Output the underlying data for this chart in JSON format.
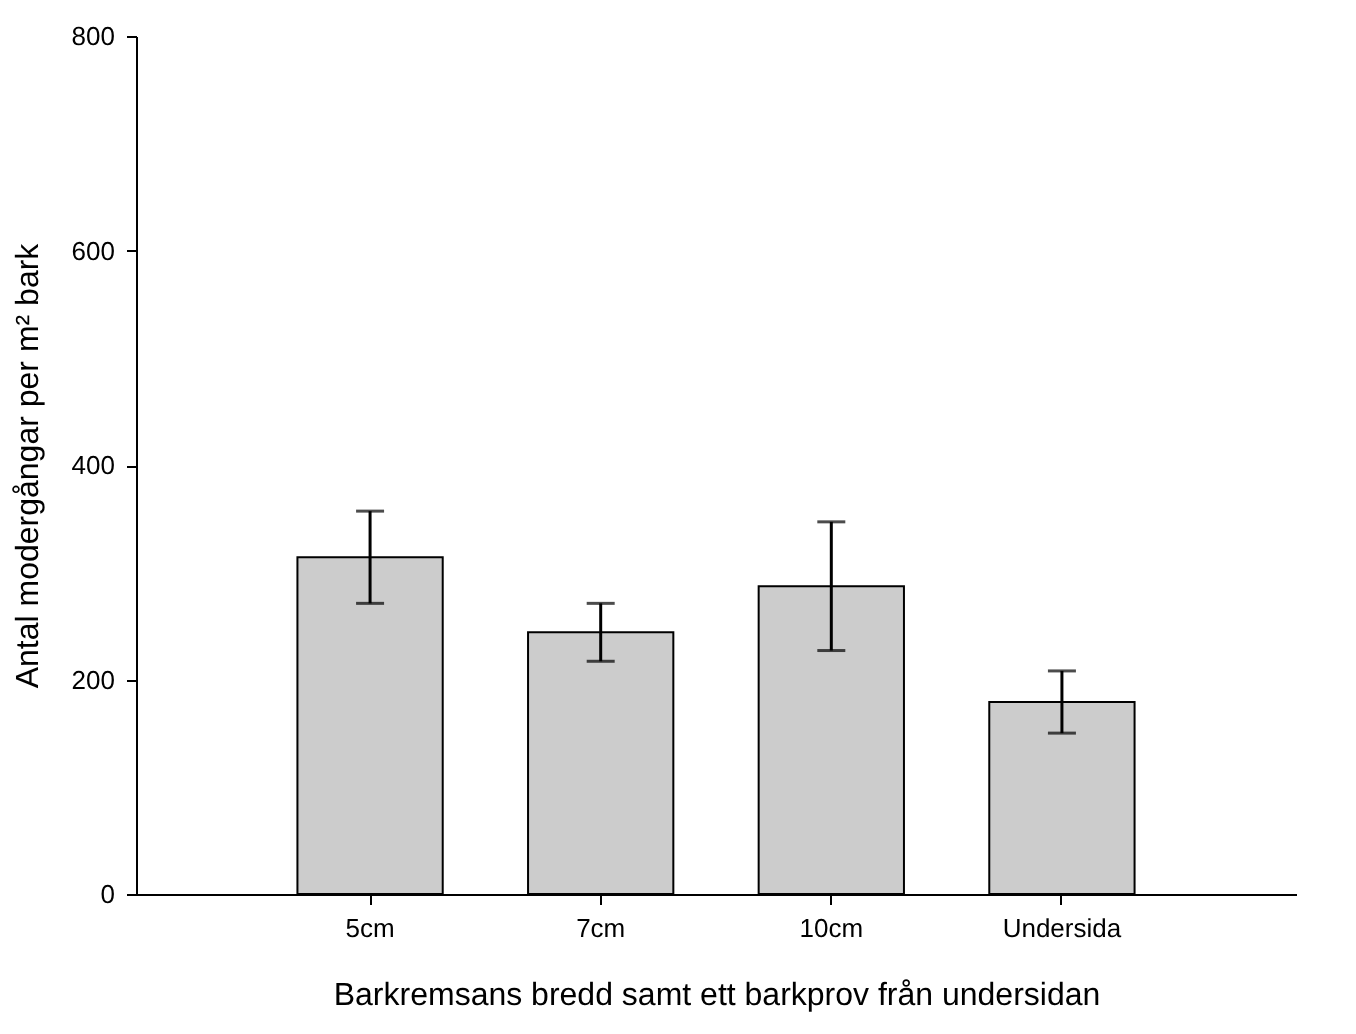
{
  "chart_data": {
    "type": "bar",
    "xlabel": "Barkremsans bredd samt ett barkprov från undersidan",
    "ylabel": "Antal modergångar per m² bark",
    "categories": [
      "5cm",
      "7cm",
      "10cm",
      "Undersida"
    ],
    "values": [
      314,
      244,
      287,
      179
    ],
    "errors": [
      43,
      27,
      60,
      29
    ],
    "color": "#cccccc",
    "ylim": [
      0,
      800
    ],
    "yticks": [
      0,
      200,
      400,
      600,
      800
    ],
    "grid": false
  }
}
